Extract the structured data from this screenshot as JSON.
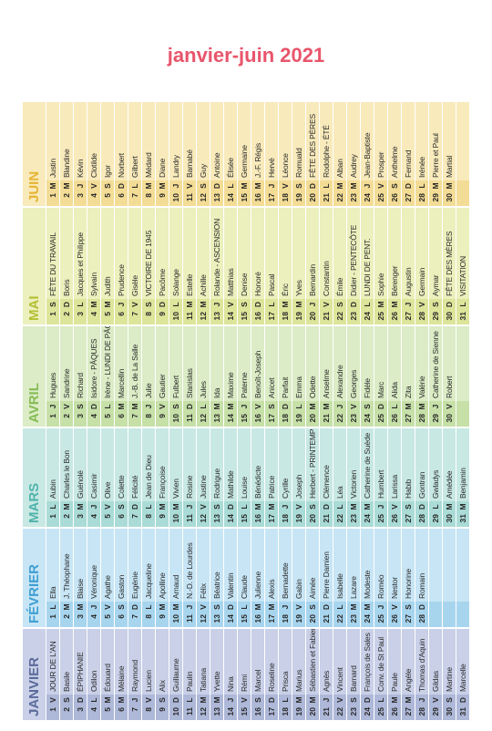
{
  "header": {
    "title": "janvier-juin 2021"
  },
  "months": [
    {
      "name": "JANVIER",
      "days": [
        [
          1,
          "V",
          "JOUR DE L'AN"
        ],
        [
          2,
          "S",
          "Basile"
        ],
        [
          3,
          "D",
          "ÉPIPHANIE"
        ],
        [
          4,
          "L",
          "Odilon"
        ],
        [
          5,
          "M",
          "Édouard"
        ],
        [
          6,
          "M",
          "Mélaine"
        ],
        [
          7,
          "J",
          "Raymond"
        ],
        [
          8,
          "V",
          "Lucien"
        ],
        [
          9,
          "S",
          "Alix"
        ],
        [
          10,
          "D",
          "Guillaume"
        ],
        [
          11,
          "L",
          "Paulin"
        ],
        [
          12,
          "M",
          "Tatiana"
        ],
        [
          13,
          "M",
          "Yvette"
        ],
        [
          14,
          "J",
          "Nina"
        ],
        [
          15,
          "V",
          "Rémi"
        ],
        [
          16,
          "S",
          "Marcel"
        ],
        [
          17,
          "D",
          "Roseline"
        ],
        [
          18,
          "L",
          "Prisca"
        ],
        [
          19,
          "M",
          "Marius"
        ],
        [
          20,
          "M",
          "Sébastien et Fabien"
        ],
        [
          21,
          "J",
          "Agnès"
        ],
        [
          22,
          "V",
          "Vincent"
        ],
        [
          23,
          "S",
          "Barnard"
        ],
        [
          24,
          "D",
          "François de Sales"
        ],
        [
          25,
          "L",
          "Conv. de St Paul"
        ],
        [
          26,
          "M",
          "Paule"
        ],
        [
          27,
          "M",
          "Angèle"
        ],
        [
          28,
          "J",
          "Thomas d'Aquin"
        ],
        [
          29,
          "V",
          "Gildas"
        ],
        [
          30,
          "S",
          "Martine"
        ],
        [
          31,
          "D",
          "Marcelle"
        ]
      ]
    },
    {
      "name": "FÉVRIER",
      "days": [
        [
          1,
          "L",
          "Ella"
        ],
        [
          2,
          "M",
          "J. Théophane"
        ],
        [
          3,
          "M",
          "Blaise"
        ],
        [
          4,
          "J",
          "Véronique"
        ],
        [
          5,
          "V",
          "Agathe"
        ],
        [
          6,
          "S",
          "Gaston"
        ],
        [
          7,
          "D",
          "Eugénie"
        ],
        [
          8,
          "L",
          "Jacqueline"
        ],
        [
          9,
          "M",
          "Apolline"
        ],
        [
          10,
          "M",
          "Arnaud"
        ],
        [
          11,
          "J",
          "N.-D. de Lourdes"
        ],
        [
          12,
          "V",
          "Félix"
        ],
        [
          13,
          "S",
          "Béatrice"
        ],
        [
          14,
          "D",
          "Valentin"
        ],
        [
          15,
          "L",
          "Claude"
        ],
        [
          16,
          "M",
          "Julienne"
        ],
        [
          17,
          "M",
          "Alexis"
        ],
        [
          18,
          "J",
          "Bernadette"
        ],
        [
          19,
          "V",
          "Gabin"
        ],
        [
          20,
          "S",
          "Aimée"
        ],
        [
          21,
          "D",
          "Pierre Damien"
        ],
        [
          22,
          "L",
          "Isabelle"
        ],
        [
          23,
          "M",
          "Lazare"
        ],
        [
          24,
          "M",
          "Modeste"
        ],
        [
          25,
          "J",
          "Roméo"
        ],
        [
          26,
          "V",
          "Nestor"
        ],
        [
          27,
          "S",
          "Honorine"
        ],
        [
          28,
          "D",
          "Romain"
        ]
      ]
    },
    {
      "name": "MARS",
      "days": [
        [
          1,
          "L",
          "Aubin"
        ],
        [
          2,
          "M",
          "Charles le Bon"
        ],
        [
          3,
          "M",
          "Guénolé"
        ],
        [
          4,
          "J",
          "Casimir"
        ],
        [
          5,
          "V",
          "Olive"
        ],
        [
          6,
          "S",
          "Colette"
        ],
        [
          7,
          "D",
          "Félicité"
        ],
        [
          8,
          "L",
          "Jean de Dieu"
        ],
        [
          9,
          "M",
          "Françoise"
        ],
        [
          10,
          "M",
          "Vivien"
        ],
        [
          11,
          "J",
          "Rosine"
        ],
        [
          12,
          "V",
          "Justine"
        ],
        [
          13,
          "S",
          "Rodrigue"
        ],
        [
          14,
          "D",
          "Mathilde"
        ],
        [
          15,
          "L",
          "Louise"
        ],
        [
          16,
          "M",
          "Bénédicte"
        ],
        [
          17,
          "M",
          "Patrice"
        ],
        [
          18,
          "J",
          "Cyrille"
        ],
        [
          19,
          "V",
          "Joseph"
        ],
        [
          20,
          "S",
          "Herbert - PRINTEMPS"
        ],
        [
          21,
          "D",
          "Clémence"
        ],
        [
          22,
          "L",
          "Léa"
        ],
        [
          23,
          "M",
          "Victorien"
        ],
        [
          24,
          "M",
          "Catherine de Suède"
        ],
        [
          25,
          "J",
          "Humbert"
        ],
        [
          26,
          "V",
          "Larissa"
        ],
        [
          27,
          "S",
          "Habib"
        ],
        [
          28,
          "D",
          "Gontran"
        ],
        [
          29,
          "L",
          "Gwladys"
        ],
        [
          30,
          "M",
          "Amédée"
        ],
        [
          31,
          "M",
          "Benjamin"
        ]
      ]
    },
    {
      "name": "AVRIL",
      "days": [
        [
          1,
          "J",
          "Hugues"
        ],
        [
          2,
          "V",
          "Sandrine"
        ],
        [
          3,
          "S",
          "Richard"
        ],
        [
          4,
          "D",
          "Isidore - PÂQUES"
        ],
        [
          5,
          "L",
          "Irène - LUNDI DE PÂQUES"
        ],
        [
          6,
          "M",
          "Marcellin"
        ],
        [
          7,
          "M",
          "J.-B. de La Salle"
        ],
        [
          8,
          "J",
          "Julie"
        ],
        [
          9,
          "V",
          "Gautier"
        ],
        [
          10,
          "S",
          "Fulbert"
        ],
        [
          11,
          "D",
          "Stanislas"
        ],
        [
          12,
          "L",
          "Jules"
        ],
        [
          13,
          "M",
          "Ida"
        ],
        [
          14,
          "M",
          "Maxime"
        ],
        [
          15,
          "J",
          "Paterne"
        ],
        [
          16,
          "V",
          "Benoît-Joseph"
        ],
        [
          17,
          "S",
          "Anicet"
        ],
        [
          18,
          "D",
          "Parfait"
        ],
        [
          19,
          "L",
          "Emma"
        ],
        [
          20,
          "M",
          "Odette"
        ],
        [
          21,
          "M",
          "Anselme"
        ],
        [
          22,
          "J",
          "Alexandre"
        ],
        [
          23,
          "V",
          "Georges"
        ],
        [
          24,
          "S",
          "Fidèle"
        ],
        [
          25,
          "D",
          "Marc"
        ],
        [
          26,
          "L",
          "Alida"
        ],
        [
          27,
          "M",
          "Zita"
        ],
        [
          28,
          "M",
          "Valérie"
        ],
        [
          29,
          "J",
          "Catherine de Sienne"
        ],
        [
          30,
          "V",
          "Robert"
        ]
      ]
    },
    {
      "name": "MAI",
      "days": [
        [
          1,
          "S",
          "FÊTE DU TRAVAIL"
        ],
        [
          2,
          "D",
          "Boris"
        ],
        [
          3,
          "L",
          "Jacques et Philippe"
        ],
        [
          4,
          "M",
          "Sylvain"
        ],
        [
          5,
          "M",
          "Judith"
        ],
        [
          6,
          "J",
          "Prudence"
        ],
        [
          7,
          "V",
          "Gisèle"
        ],
        [
          8,
          "S",
          "VICTOIRE DE 1945"
        ],
        [
          9,
          "D",
          "Pacôme"
        ],
        [
          10,
          "L",
          "Solange"
        ],
        [
          11,
          "M",
          "Estelle"
        ],
        [
          12,
          "M",
          "Achille"
        ],
        [
          13,
          "J",
          "Rolande - ASCENSION"
        ],
        [
          14,
          "V",
          "Matthias"
        ],
        [
          15,
          "S",
          "Denise"
        ],
        [
          16,
          "D",
          "Honoré"
        ],
        [
          17,
          "L",
          "Pascal"
        ],
        [
          18,
          "M",
          "Éric"
        ],
        [
          19,
          "M",
          "Yves"
        ],
        [
          20,
          "J",
          "Bernardin"
        ],
        [
          21,
          "V",
          "Constantin"
        ],
        [
          22,
          "S",
          "Émile"
        ],
        [
          23,
          "D",
          "Didier - PENTECÔTE"
        ],
        [
          24,
          "L",
          "LUNDI DE PENT."
        ],
        [
          25,
          "M",
          "Sophie"
        ],
        [
          26,
          "M",
          "Bérenger"
        ],
        [
          27,
          "J",
          "Augustin"
        ],
        [
          28,
          "V",
          "Germain"
        ],
        [
          29,
          "S",
          "Aymar"
        ],
        [
          30,
          "D",
          "FÊTE DES MÈRES"
        ],
        [
          31,
          "L",
          "VISITATION"
        ]
      ]
    },
    {
      "name": "JUIN",
      "days": [
        [
          1,
          "M",
          "Justin"
        ],
        [
          2,
          "M",
          "Blandine"
        ],
        [
          3,
          "J",
          "Kévin"
        ],
        [
          4,
          "V",
          "Clotilde"
        ],
        [
          5,
          "S",
          "Igor"
        ],
        [
          6,
          "D",
          "Norbert"
        ],
        [
          7,
          "L",
          "Gilbert"
        ],
        [
          8,
          "M",
          "Médard"
        ],
        [
          9,
          "M",
          "Diane"
        ],
        [
          10,
          "J",
          "Landry"
        ],
        [
          11,
          "V",
          "Barnabé"
        ],
        [
          12,
          "S",
          "Guy"
        ],
        [
          13,
          "D",
          "Antoine"
        ],
        [
          14,
          "L",
          "Élisée"
        ],
        [
          15,
          "M",
          "Germaine"
        ],
        [
          16,
          "M",
          "J.-F. Régis"
        ],
        [
          17,
          "J",
          "Hervé"
        ],
        [
          18,
          "V",
          "Léonce"
        ],
        [
          19,
          "S",
          "Romuald"
        ],
        [
          20,
          "D",
          "FÊTE DES PÈRES"
        ],
        [
          21,
          "L",
          "Rodolphe - ÉTÉ"
        ],
        [
          22,
          "M",
          "Alban"
        ],
        [
          23,
          "M",
          "Audrey"
        ],
        [
          24,
          "J",
          "Jean-Baptiste"
        ],
        [
          25,
          "V",
          "Prosper"
        ],
        [
          26,
          "S",
          "Anthelme"
        ],
        [
          27,
          "D",
          "Fernand"
        ],
        [
          28,
          "L",
          "Irénée"
        ],
        [
          29,
          "M",
          "Pierre et Paul"
        ],
        [
          30,
          "M",
          "Martial"
        ]
      ]
    }
  ]
}
